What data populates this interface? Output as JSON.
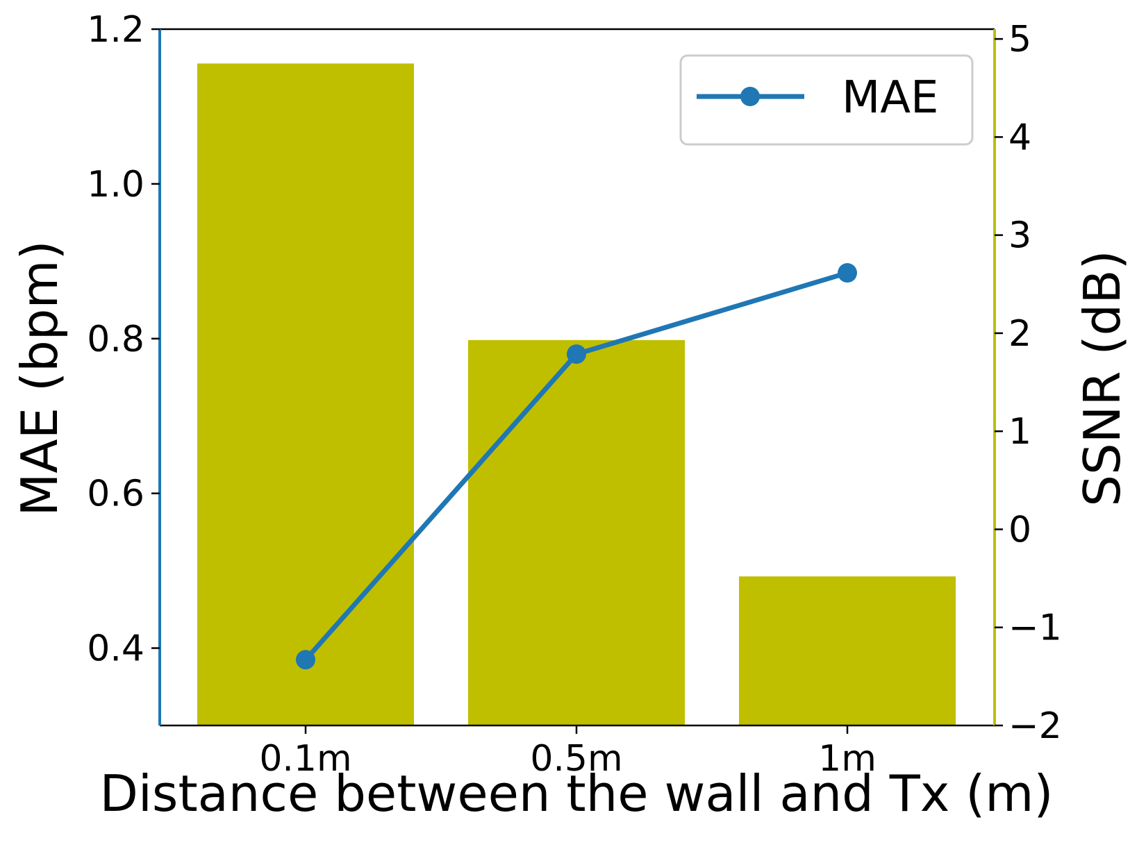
{
  "chart_data": {
    "type": "bar",
    "categories": [
      "0.1m",
      "0.5m",
      "1m"
    ],
    "xlabel": "Distance between the wall and Tx (m)",
    "left_axis": {
      "label": "MAE (bpm)",
      "ylim": [
        0.3,
        1.2
      ],
      "ticks": [
        "0.4",
        "0.6",
        "0.8",
        "1.0",
        "1.2"
      ],
      "tick_values": [
        0.4,
        0.6,
        0.8,
        1.0,
        1.2
      ],
      "color": "#1f77b4"
    },
    "right_axis": {
      "label": "SSNR (dB)",
      "ylim": [
        -2,
        5.1
      ],
      "ticks": [
        "−2",
        "−1",
        "0",
        "1",
        "2",
        "3",
        "4",
        "5"
      ],
      "tick_values": [
        -2,
        -1,
        0,
        1,
        2,
        3,
        4,
        5
      ],
      "color": "#bfbf00"
    },
    "series": [
      {
        "kind": "bar",
        "axis": "right",
        "values": [
          4.75,
          1.93,
          -0.48
        ],
        "color": "#bfbf00"
      },
      {
        "name": "MAE",
        "kind": "line",
        "axis": "left",
        "values": [
          0.385,
          0.78,
          0.885
        ],
        "color": "#1f77b4",
        "marker": "circle"
      }
    ],
    "legend": {
      "position": "upper-right",
      "entries": [
        "MAE"
      ]
    },
    "grid": false
  }
}
